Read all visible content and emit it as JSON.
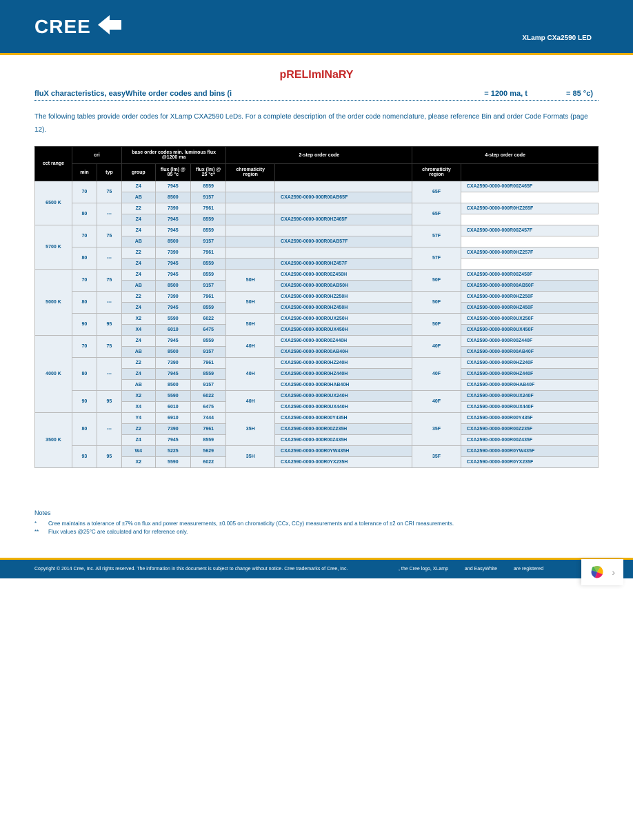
{
  "header": {
    "logo_text": "CREE",
    "product": "XLamp CXa2590 LED"
  },
  "preliminary": "pRELImINaRY",
  "section_title_prefix": "fluX characteristics, easyWhite order codes and bins (i",
  "section_title_mid": "= 1200 ma, t",
  "section_title_suffix": "= 85 °c)",
  "intro": "The following tables provide order codes for XLamp CXA2590 LeDs. For a complete description of the order code nomenclature, please reference Bin and order Code Formats (page 12).",
  "table": {
    "headers": {
      "cct": "cct range",
      "cri": "cri",
      "base": "base order codes min. luminous flux @1200 ma",
      "min": "min",
      "typ": "typ",
      "group": "group",
      "flux85": "flux (lm) @ 85 °c",
      "flux25": "flux (lm) @ 25 °c*",
      "two_step": "2-step order code",
      "four_step": "4-step order code",
      "chrom": "chromaticity region"
    },
    "rows": [
      {
        "cct": "6500 K",
        "cct_span": 4,
        "cri_min": "70",
        "cri_typ": "75",
        "cri_span": 2,
        "group": "Z4",
        "f85": "7945",
        "f25": "8559",
        "chrom2": "",
        "code2": "",
        "chrom4": "65F",
        "chrom4_span": 2,
        "code4": "CXA2590-0000-000R00Z465F",
        "bg": "a"
      },
      {
        "group": "AB",
        "f85": "8500",
        "f25": "9157",
        "code2": "",
        "code4": "CXA2590-0000-000R00AB65F",
        "bg": "b"
      },
      {
        "cri_min": "80",
        "cri_typ": "---",
        "cri_span": 2,
        "group": "Z2",
        "f85": "7390",
        "f25": "7961",
        "chrom2": "",
        "code2": "",
        "chrom4": "65F",
        "chrom4_span": 2,
        "code4": "CXA2590-0000-000R0HZ265F",
        "bg": "a"
      },
      {
        "group": "Z4",
        "f85": "7945",
        "f25": "8559",
        "code2": "",
        "code4": "CXA2590-0000-000R0HZ465F",
        "bg": "b"
      },
      {
        "cct": "5700 K",
        "cct_span": 4,
        "cri_min": "70",
        "cri_typ": "75",
        "cri_span": 2,
        "group": "Z4",
        "f85": "7945",
        "f25": "8559",
        "chrom2": "",
        "code2": "",
        "chrom4": "57F",
        "chrom4_span": 2,
        "code4": "CXA2590-0000-000R00Z457F",
        "bg": "a"
      },
      {
        "group": "AB",
        "f85": "8500",
        "f25": "9157",
        "code2": "",
        "code4": "CXA2590-0000-000R00AB57F",
        "bg": "b"
      },
      {
        "cri_min": "80",
        "cri_typ": "---",
        "cri_span": 2,
        "group": "Z2",
        "f85": "7390",
        "f25": "7961",
        "chrom2": "",
        "code2": "",
        "chrom4": "57F",
        "chrom4_span": 2,
        "code4": "CXA2590-0000-000R0HZ257F",
        "bg": "a"
      },
      {
        "group": "Z4",
        "f85": "7945",
        "f25": "8559",
        "code2": "",
        "code4": "CXA2590-0000-000R0HZ457F",
        "bg": "b"
      },
      {
        "cct": "5000 K",
        "cct_span": 6,
        "cri_min": "70",
        "cri_typ": "75",
        "cri_span": 2,
        "group": "Z4",
        "f85": "7945",
        "f25": "8559",
        "chrom2": "50H",
        "chrom2_span": 2,
        "code2": "CXA2590-0000-000R00Z450H",
        "chrom4": "50F",
        "chrom4_span": 2,
        "code4": "CXA2590-0000-000R00Z450F",
        "bg": "a"
      },
      {
        "group": "AB",
        "f85": "8500",
        "f25": "9157",
        "code2": "CXA2590-0000-000R00AB50H",
        "code4": "CXA2590-0000-000R00AB50F",
        "bg": "b"
      },
      {
        "cri_min": "80",
        "cri_typ": "---",
        "cri_span": 2,
        "group": "Z2",
        "f85": "7390",
        "f25": "7961",
        "chrom2": "50H",
        "chrom2_span": 2,
        "code2": "CXA2590-0000-000R0HZ250H",
        "chrom4": "50F",
        "chrom4_span": 2,
        "code4": "CXA2590-0000-000R0HZ250F",
        "bg": "a"
      },
      {
        "group": "Z4",
        "f85": "7945",
        "f25": "8559",
        "code2": "CXA2590-0000-000R0HZ450H",
        "code4": "CXA2590-0000-000R0HZ450F",
        "bg": "b"
      },
      {
        "cri_min": "90",
        "cri_typ": "95",
        "cri_span": 2,
        "group": "X2",
        "f85": "5590",
        "f25": "6022",
        "chrom2": "50H",
        "chrom2_span": 2,
        "code2": "CXA2590-0000-000R0UX250H",
        "chrom4": "50F",
        "chrom4_span": 2,
        "code4": "CXA2590-0000-000R0UX250F",
        "bg": "a"
      },
      {
        "group": "X4",
        "f85": "6010",
        "f25": "6475",
        "code2": "CXA2590-0000-000R0UX450H",
        "code4": "CXA2590-0000-000R0UX450F",
        "bg": "b"
      },
      {
        "cct": "4000 K",
        "cct_span": 7,
        "cri_min": "70",
        "cri_typ": "75",
        "cri_span": 2,
        "group": "Z4",
        "f85": "7945",
        "f25": "8559",
        "chrom2": "40H",
        "chrom2_span": 2,
        "code2": "CXA2590-0000-000R00Z440H",
        "chrom4": "40F",
        "chrom4_span": 2,
        "code4": "CXA2590-0000-000R00Z440F",
        "bg": "a"
      },
      {
        "group": "AB",
        "f85": "8500",
        "f25": "9157",
        "code2": "CXA2590-0000-000R00AB40H",
        "code4": "CXA2590-0000-000R00AB40F",
        "bg": "b"
      },
      {
        "cri_min": "80",
        "cri_typ": "---",
        "cri_span": 3,
        "group": "Z2",
        "f85": "7390",
        "f25": "7961",
        "chrom2": "40H",
        "chrom2_span": 3,
        "code2": "CXA2590-0000-000R0HZ240H",
        "chrom4": "40F",
        "chrom4_span": 3,
        "code4": "CXA2590-0000-000R0HZ240F",
        "bg": "a"
      },
      {
        "group": "Z4",
        "f85": "7945",
        "f25": "8559",
        "code2": "CXA2590-0000-000R0HZ440H",
        "code4": "CXA2590-0000-000R0HZ440F",
        "bg": "b"
      },
      {
        "group": "AB",
        "f85": "8500",
        "f25": "9157",
        "code2": "CXA2590-0000-000R0HAB40H",
        "code4": "CXA2590-0000-000R0HAB40F",
        "bg": "a"
      },
      {
        "cri_min": "90",
        "cri_typ": "95",
        "cri_span": 2,
        "group": "X2",
        "f85": "5590",
        "f25": "6022",
        "chrom2": "40H",
        "chrom2_span": 2,
        "code2": "CXA2590-0000-000R0UX240H",
        "chrom4": "40F",
        "chrom4_span": 2,
        "code4": "CXA2590-0000-000R0UX240F",
        "bg": "b"
      },
      {
        "group": "X4",
        "f85": "6010",
        "f25": "6475",
        "code2": "CXA2590-0000-000R0UX440H",
        "code4": "CXA2590-0000-000R0UX440F",
        "bg": "a"
      },
      {
        "cct": "3500 K",
        "cct_span": 5,
        "cri_min": "80",
        "cri_typ": "---",
        "cri_span": 3,
        "group": "Y4",
        "f85": "6910",
        "f25": "7444",
        "chrom2": "35H",
        "chrom2_span": 3,
        "code2": "CXA2590-0000-000R00Y435H",
        "chrom4": "35F",
        "chrom4_span": 3,
        "code4": "CXA2590-0000-000R00Y435F",
        "bg": "a"
      },
      {
        "group": "Z2",
        "f85": "7390",
        "f25": "7961",
        "code2": "CXA2590-0000-000R00Z235H",
        "code4": "CXA2590-0000-000R00Z235F",
        "bg": "b"
      },
      {
        "group": "Z4",
        "f85": "7945",
        "f25": "8559",
        "code2": "CXA2590-0000-000R00Z435H",
        "code4": "CXA2590-0000-000R00Z435F",
        "bg": "a"
      },
      {
        "cri_min": "93",
        "cri_typ": "95",
        "cri_span": 2,
        "group": "W4",
        "f85": "5225",
        "f25": "5629",
        "chrom2": "35H",
        "chrom2_span": 2,
        "code2": "CXA2590-0000-000R0YW435H",
        "chrom4": "35F",
        "chrom4_span": 2,
        "code4": "CXA2590-0000-000R0YW435F",
        "bg": "b"
      },
      {
        "group": "X2",
        "f85": "5590",
        "f25": "6022",
        "code2": "CXA2590-0000-000R0YX235H",
        "code4": "CXA2590-0000-000R0YX235F",
        "bg": "a"
      }
    ]
  },
  "notes": {
    "title": "Notes",
    "items": [
      {
        "marker": "*",
        "text": "Cree maintains a tolerance of ±7% on flux and power measurements, ±0.005 on chromaticity (CCx, CCy) measurements and a tolerance of ±2 on CRI measurements."
      },
      {
        "marker": "**",
        "text": "Flux values @25°C are calculated and for reference only."
      }
    ]
  },
  "footer": {
    "left": "Copyright © 2014 Cree, Inc. All rights reserved. The information in this document is subject to change without notice. Cree trademarks of Cree, Inc.",
    "right_a": ", the Cree logo, XLamp",
    "right_b": "and EasyWhite",
    "right_c": "are registered"
  }
}
